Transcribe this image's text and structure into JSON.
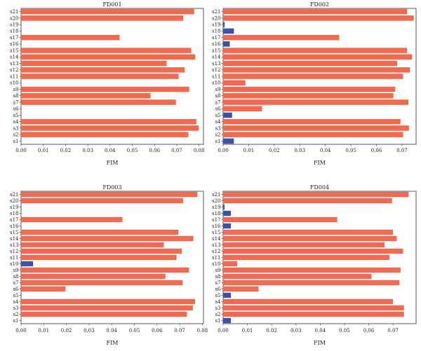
{
  "chart_data": [
    {
      "type": "bar",
      "orientation": "horizontal",
      "title": "FD001",
      "xlabel": "FIM",
      "xlim": [
        0,
        0.082
      ],
      "xticks": [
        "0.00",
        "0.01",
        "0.02",
        "0.03",
        "0.04",
        "0.05",
        "0.06",
        "0.07",
        "0.08"
      ],
      "categories": [
        "s1",
        "s2",
        "s3",
        "s4",
        "s5",
        "s6",
        "s7",
        "s8",
        "s9",
        "s10",
        "s11",
        "s12",
        "s13",
        "s14",
        "s15",
        "s16",
        "s17",
        "s18",
        "s19",
        "s20",
        "s21"
      ],
      "values": [
        0,
        0.0752,
        0.0798,
        0.0788,
        0,
        0,
        0.0696,
        0.0582,
        0.0756,
        0,
        0.0708,
        0.0735,
        0.0654,
        0.0783,
        0.0765,
        0,
        0.0443,
        0,
        0,
        0.0729,
        0.0778
      ],
      "bar_colors": [
        "#ee6a50",
        "#ee6a50",
        "#ee6a50",
        "#ee6a50",
        "#ee6a50",
        "#ee6a50",
        "#ee6a50",
        "#ee6a50",
        "#ee6a50",
        "#ee6a50",
        "#ee6a50",
        "#ee6a50",
        "#ee6a50",
        "#ee6a50",
        "#ee6a50",
        "#ee6a50",
        "#ee6a50",
        "#ee6a50",
        "#ee6a50",
        "#ee6a50",
        "#ee6a50"
      ]
    },
    {
      "type": "bar",
      "orientation": "horizontal",
      "title": "FD002",
      "xlabel": "FIM",
      "xlim": [
        0,
        0.0755
      ],
      "xticks": [
        "0.00",
        "0.01",
        "0.02",
        "0.03",
        "0.04",
        "0.05",
        "0.06",
        "0.07"
      ],
      "categories": [
        "s1",
        "s2",
        "s3",
        "s4",
        "s5",
        "s6",
        "s7",
        "s8",
        "s9",
        "s10",
        "s11",
        "s12",
        "s13",
        "s14",
        "s15",
        "s16",
        "s17",
        "s18",
        "s19",
        "s20",
        "s21"
      ],
      "values": [
        0.0042,
        0.0704,
        0.0727,
        0.0694,
        0.0035,
        0.0152,
        0.0725,
        0.0666,
        0.0673,
        0.0087,
        0.0704,
        0.0731,
        0.0681,
        0.0739,
        0.072,
        0.0026,
        0.0454,
        0.0042,
        0.0006,
        0.0746,
        0.072
      ],
      "bar_colors": [
        "#3a53a4",
        "#ee6a50",
        "#ee6a50",
        "#ee6a50",
        "#3a53a4",
        "#ee6a50",
        "#ee6a50",
        "#ee6a50",
        "#ee6a50",
        "#ee6a50",
        "#ee6a50",
        "#ee6a50",
        "#ee6a50",
        "#ee6a50",
        "#ee6a50",
        "#3a53a4",
        "#ee6a50",
        "#3a53a4",
        "#3a53a4",
        "#ee6a50",
        "#ee6a50"
      ]
    },
    {
      "type": "bar",
      "orientation": "horizontal",
      "title": "FD003",
      "xlabel": "FIM",
      "xlim": [
        0,
        0.0805
      ],
      "xticks": [
        "0.00",
        "0.01",
        "0.02",
        "0.03",
        "0.04",
        "0.05",
        "0.06",
        "0.07",
        "0.08"
      ],
      "categories": [
        "s1",
        "s2",
        "s3",
        "s4",
        "s5",
        "s6",
        "s7",
        "s8",
        "s9",
        "s10",
        "s11",
        "s12",
        "s13",
        "s14",
        "s15",
        "s16",
        "s17",
        "s18",
        "s19",
        "s20",
        "s21"
      ],
      "values": [
        0,
        0.0732,
        0.0758,
        0.0768,
        0,
        0.0196,
        0.0713,
        0.0637,
        0.0741,
        0.0053,
        0.0686,
        0.0709,
        0.063,
        0.076,
        0.0694,
        0,
        0.0447,
        0,
        0,
        0.0715,
        0.0778
      ],
      "bar_colors": [
        "#ee6a50",
        "#ee6a50",
        "#ee6a50",
        "#ee6a50",
        "#ee6a50",
        "#ee6a50",
        "#ee6a50",
        "#ee6a50",
        "#ee6a50",
        "#3a53a4",
        "#ee6a50",
        "#ee6a50",
        "#ee6a50",
        "#ee6a50",
        "#ee6a50",
        "#ee6a50",
        "#ee6a50",
        "#ee6a50",
        "#ee6a50",
        "#ee6a50",
        "#ee6a50"
      ]
    },
    {
      "type": "bar",
      "orientation": "horizontal",
      "title": "FD004",
      "xlabel": "FIM",
      "xlim": [
        0,
        0.0795
      ],
      "xticks": [
        "0.00",
        "0.01",
        "0.02",
        "0.03",
        "0.04",
        "0.05",
        "0.06",
        "0.07"
      ],
      "categories": [
        "s1",
        "s2",
        "s3",
        "s4",
        "s5",
        "s6",
        "s7",
        "s8",
        "s9",
        "s10",
        "s11",
        "s12",
        "s13",
        "s14",
        "s15",
        "s16",
        "s17",
        "s18",
        "s19",
        "s20",
        "s21"
      ],
      "values": [
        0.0032,
        0.0745,
        0.0745,
        0.07,
        0.0032,
        0.0146,
        0.0726,
        0.0611,
        0.0731,
        0.0058,
        0.0685,
        0.0741,
        0.0665,
        0.0715,
        0.07,
        0.0032,
        0.047,
        0.0032,
        0.0006,
        0.0696,
        0.0764
      ],
      "bar_colors": [
        "#3a53a4",
        "#ee6a50",
        "#ee6a50",
        "#ee6a50",
        "#3a53a4",
        "#ee6a50",
        "#ee6a50",
        "#ee6a50",
        "#ee6a50",
        "#ee6a50",
        "#ee6a50",
        "#ee6a50",
        "#ee6a50",
        "#ee6a50",
        "#ee6a50",
        "#3a53a4",
        "#ee6a50",
        "#3a53a4",
        "#3a53a4",
        "#ee6a50",
        "#ee6a50"
      ]
    }
  ]
}
